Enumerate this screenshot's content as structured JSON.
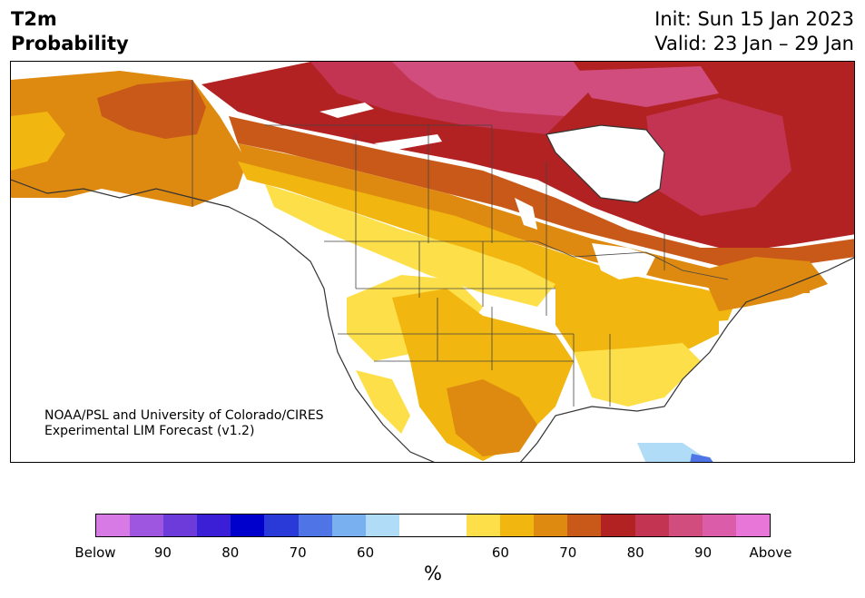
{
  "header": {
    "variable": "T2m",
    "product": "Probability",
    "init": "Init: Sun 15 Jan 2023",
    "valid": "Valid: 23 Jan – 29 Jan"
  },
  "credit": {
    "line1": "NOAA/PSL and University of Colorado/CIRES",
    "line2": "Experimental LIM Forecast (v1.2)"
  },
  "colorbar": {
    "colors": [
      "#d77ae6",
      "#9e56e0",
      "#6d3bd9",
      "#3a1fd6",
      "#0000cc",
      "#2a3ad9",
      "#4e74e6",
      "#79b1f0",
      "#b0dcf8",
      "#ffffff",
      "#ffffff",
      "#fde049",
      "#f1b60f",
      "#de8a10",
      "#c95919",
      "#b22222",
      "#c23451",
      "#d04d7e",
      "#db5ca9",
      "#e876d8"
    ],
    "tick_labels": [
      "Below",
      "90",
      "80",
      "70",
      "60",
      "60",
      "70",
      "80",
      "90",
      "Above"
    ],
    "unit": "%"
  },
  "legend_colors": {
    "p60_warm": "#fde049",
    "p65_warm": "#f1b60f",
    "p70_warm": "#de8a10",
    "p75_warm": "#c95919",
    "p80_warm": "#b22222",
    "p85_warm": "#c23451",
    "p90_warm": "#d04d7e",
    "p60_cold": "#b0dcf8",
    "p65_cold": "#79b1f0",
    "p70_cold": "#4e74e6"
  }
}
